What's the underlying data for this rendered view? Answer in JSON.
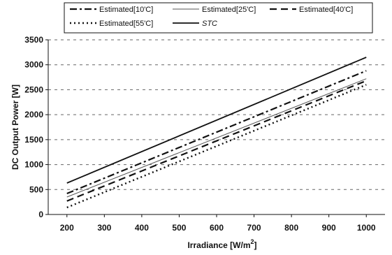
{
  "chart_data": {
    "type": "line",
    "title": "",
    "xlabel": "Irradiance [W/m",
    "xlabel_sup": "2",
    "xlabel_tail": "]",
    "ylabel": "DC Output Power [W]",
    "xlim": [
      150,
      1050
    ],
    "ylim": [
      0,
      3500
    ],
    "x": [
      200,
      1000
    ],
    "x_ticks": [
      200,
      300,
      400,
      500,
      600,
      700,
      800,
      900,
      1000
    ],
    "y_ticks": [
      0,
      500,
      1000,
      1500,
      2000,
      2500,
      3000,
      3500
    ],
    "grid": "horizontal-dashed",
    "legend_placement": "top",
    "series": [
      {
        "name": "Estimated[10'C]",
        "values": [
          420,
          2880
        ],
        "style": "dashdot",
        "color": "#111111"
      },
      {
        "name": "Estimated[25'C]",
        "values": [
          350,
          2720
        ],
        "style": "thin",
        "color": "#555555"
      },
      {
        "name": "Estimated[40'C]",
        "values": [
          270,
          2680
        ],
        "style": "dash",
        "color": "#111111"
      },
      {
        "name": "Estimated[55'C]",
        "values": [
          140,
          2600
        ],
        "style": "dot",
        "color": "#111111"
      },
      {
        "name": "STC",
        "values": [
          630,
          3150
        ],
        "style": "solid",
        "color": "#111111"
      }
    ]
  }
}
